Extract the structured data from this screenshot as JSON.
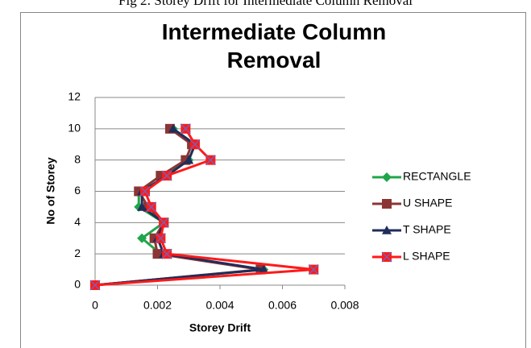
{
  "caption": "Fig 2: Storey Drift for Intermediate Column Removal",
  "chart_data": {
    "type": "line",
    "title": "Intermediate Column Removal",
    "x_label": "Storey Drift",
    "y_label": "No of Storey",
    "xlim": [
      0,
      0.008
    ],
    "xticks": [
      0,
      0.002,
      0.004,
      0.006,
      0.008
    ],
    "ylim": [
      0,
      12
    ],
    "yticks": [
      0,
      2,
      4,
      6,
      8,
      10,
      12
    ],
    "grid": true,
    "legend": "right",
    "series": [
      {
        "name": "RECTANGLE",
        "color": "#1fa64a",
        "marker": "diamond",
        "x": [
          0,
          0.0054,
          0.0021,
          0.0015,
          0.0022,
          0.0014,
          0.0014,
          0.0021,
          0.003,
          0.0032,
          0.0025
        ],
        "values": [
          0,
          1,
          2,
          3,
          4,
          5,
          6,
          7,
          8,
          9,
          10
        ]
      },
      {
        "name": "U SHAPE",
        "color": "#8b3535",
        "marker": "square",
        "x": [
          0,
          0.0053,
          0.002,
          0.0019,
          0.0022,
          0.0017,
          0.0014,
          0.0021,
          0.0029,
          0.0031,
          0.0024
        ],
        "values": [
          0,
          1,
          2,
          3,
          4,
          5,
          6,
          7,
          8,
          9,
          10
        ]
      },
      {
        "name": "T SHAPE",
        "color": "#1f2d5a",
        "marker": "triangle",
        "x": [
          0,
          0.0054,
          0.0022,
          0.002,
          0.0022,
          0.0015,
          0.0015,
          0.0023,
          0.003,
          0.0032,
          0.0025
        ],
        "values": [
          0,
          1,
          2,
          3,
          4,
          5,
          6,
          7,
          8,
          9,
          10
        ]
      },
      {
        "name": "L SHAPE",
        "color": "#ff1a1a",
        "marker": "cross-square",
        "x": [
          0,
          0.007,
          0.0023,
          0.0021,
          0.0022,
          0.0018,
          0.0016,
          0.0023,
          0.0037,
          0.0032,
          0.0029
        ],
        "values": [
          0,
          1,
          2,
          3,
          4,
          5,
          6,
          7,
          8,
          9,
          10
        ]
      }
    ]
  }
}
